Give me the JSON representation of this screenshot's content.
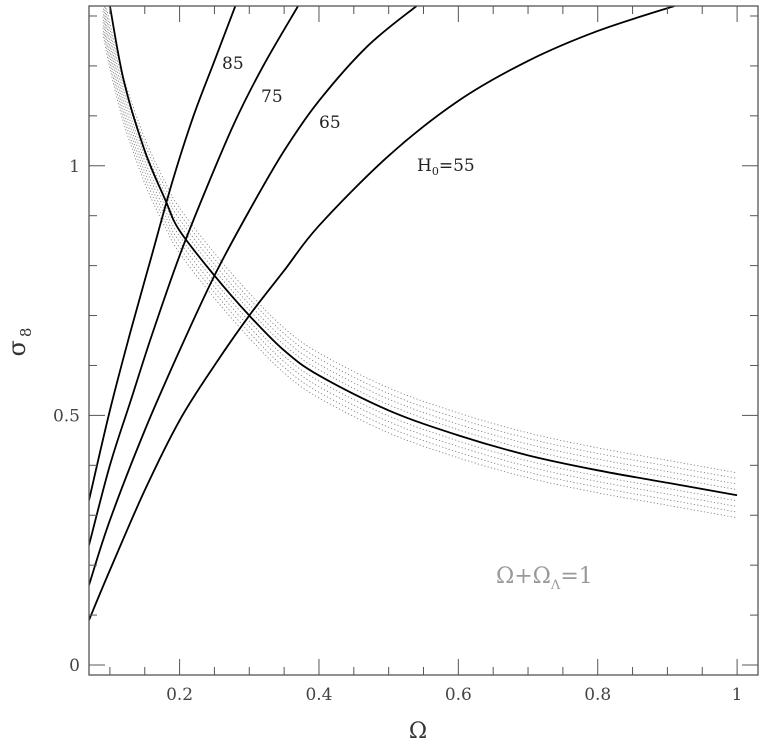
{
  "chart_data": {
    "type": "line",
    "xlabel": "Ω",
    "ylabel": "σ",
    "ylabel_sub": "8",
    "xlim": [
      0.07,
      1.03
    ],
    "ylim": [
      -0.02,
      1.32
    ],
    "x_ticks": [
      0.2,
      0.4,
      0.6,
      0.8,
      1
    ],
    "x_tick_labels": [
      "0.2",
      "0.4",
      "0.6",
      "0.8",
      "1"
    ],
    "y_ticks": [
      0,
      0.5,
      1
    ],
    "y_tick_labels": [
      "0",
      "0.5",
      "1"
    ],
    "x_minor_step": 0.05,
    "y_minor_step": 0.1,
    "grid": false,
    "series": [
      {
        "name": "",
        "label": "85",
        "x": [
          0.07,
          0.1,
          0.13,
          0.16,
          0.19,
          0.22,
          0.25,
          0.28
        ],
        "y": [
          0.33,
          0.51,
          0.67,
          0.82,
          0.97,
          1.1,
          1.21,
          1.32
        ]
      },
      {
        "name": "",
        "label": "75",
        "x": [
          0.07,
          0.1,
          0.13,
          0.16,
          0.2,
          0.24,
          0.28,
          0.32,
          0.37
        ],
        "y": [
          0.24,
          0.4,
          0.53,
          0.66,
          0.82,
          0.96,
          1.09,
          1.2,
          1.32
        ]
      },
      {
        "name": "",
        "label": "65",
        "x": [
          0.07,
          0.1,
          0.15,
          0.2,
          0.25,
          0.3,
          0.35,
          0.4,
          0.47,
          0.54
        ],
        "y": [
          0.16,
          0.29,
          0.47,
          0.63,
          0.78,
          0.91,
          1.03,
          1.13,
          1.24,
          1.32
        ]
      },
      {
        "name": "",
        "label_main": "H",
        "label_sub": "0",
        "label_tail": "=55",
        "x": [
          0.07,
          0.1,
          0.15,
          0.2,
          0.25,
          0.3,
          0.35,
          0.4,
          0.5,
          0.6,
          0.7,
          0.8,
          0.91
        ],
        "y": [
          0.09,
          0.19,
          0.35,
          0.49,
          0.6,
          0.7,
          0.79,
          0.88,
          1.02,
          1.13,
          1.21,
          1.27,
          1.32
        ]
      },
      {
        "name": "",
        "x": [
          0.1,
          0.12,
          0.15,
          0.18,
          0.2,
          0.25,
          0.3,
          0.35,
          0.4,
          0.5,
          0.6,
          0.7,
          0.8,
          0.9,
          1.0
        ],
        "y": [
          1.32,
          1.17,
          1.03,
          0.93,
          0.87,
          0.78,
          0.7,
          0.63,
          0.58,
          0.51,
          0.46,
          0.42,
          0.39,
          0.365,
          0.34
        ]
      }
    ],
    "band": {
      "x": [
        0.09,
        0.1,
        0.12,
        0.15,
        0.18,
        0.2,
        0.25,
        0.3,
        0.35,
        0.4,
        0.5,
        0.6,
        0.7,
        0.8,
        0.9,
        1.0
      ],
      "y_center": [
        1.31,
        1.24,
        1.13,
        1.01,
        0.92,
        0.87,
        0.78,
        0.7,
        0.63,
        0.58,
        0.51,
        0.46,
        0.42,
        0.39,
        0.365,
        0.34
      ],
      "half_width": 0.045,
      "line_count": 9
    },
    "annotation_parts": [
      "Ω+Ω",
      "Λ",
      "=1"
    ]
  }
}
